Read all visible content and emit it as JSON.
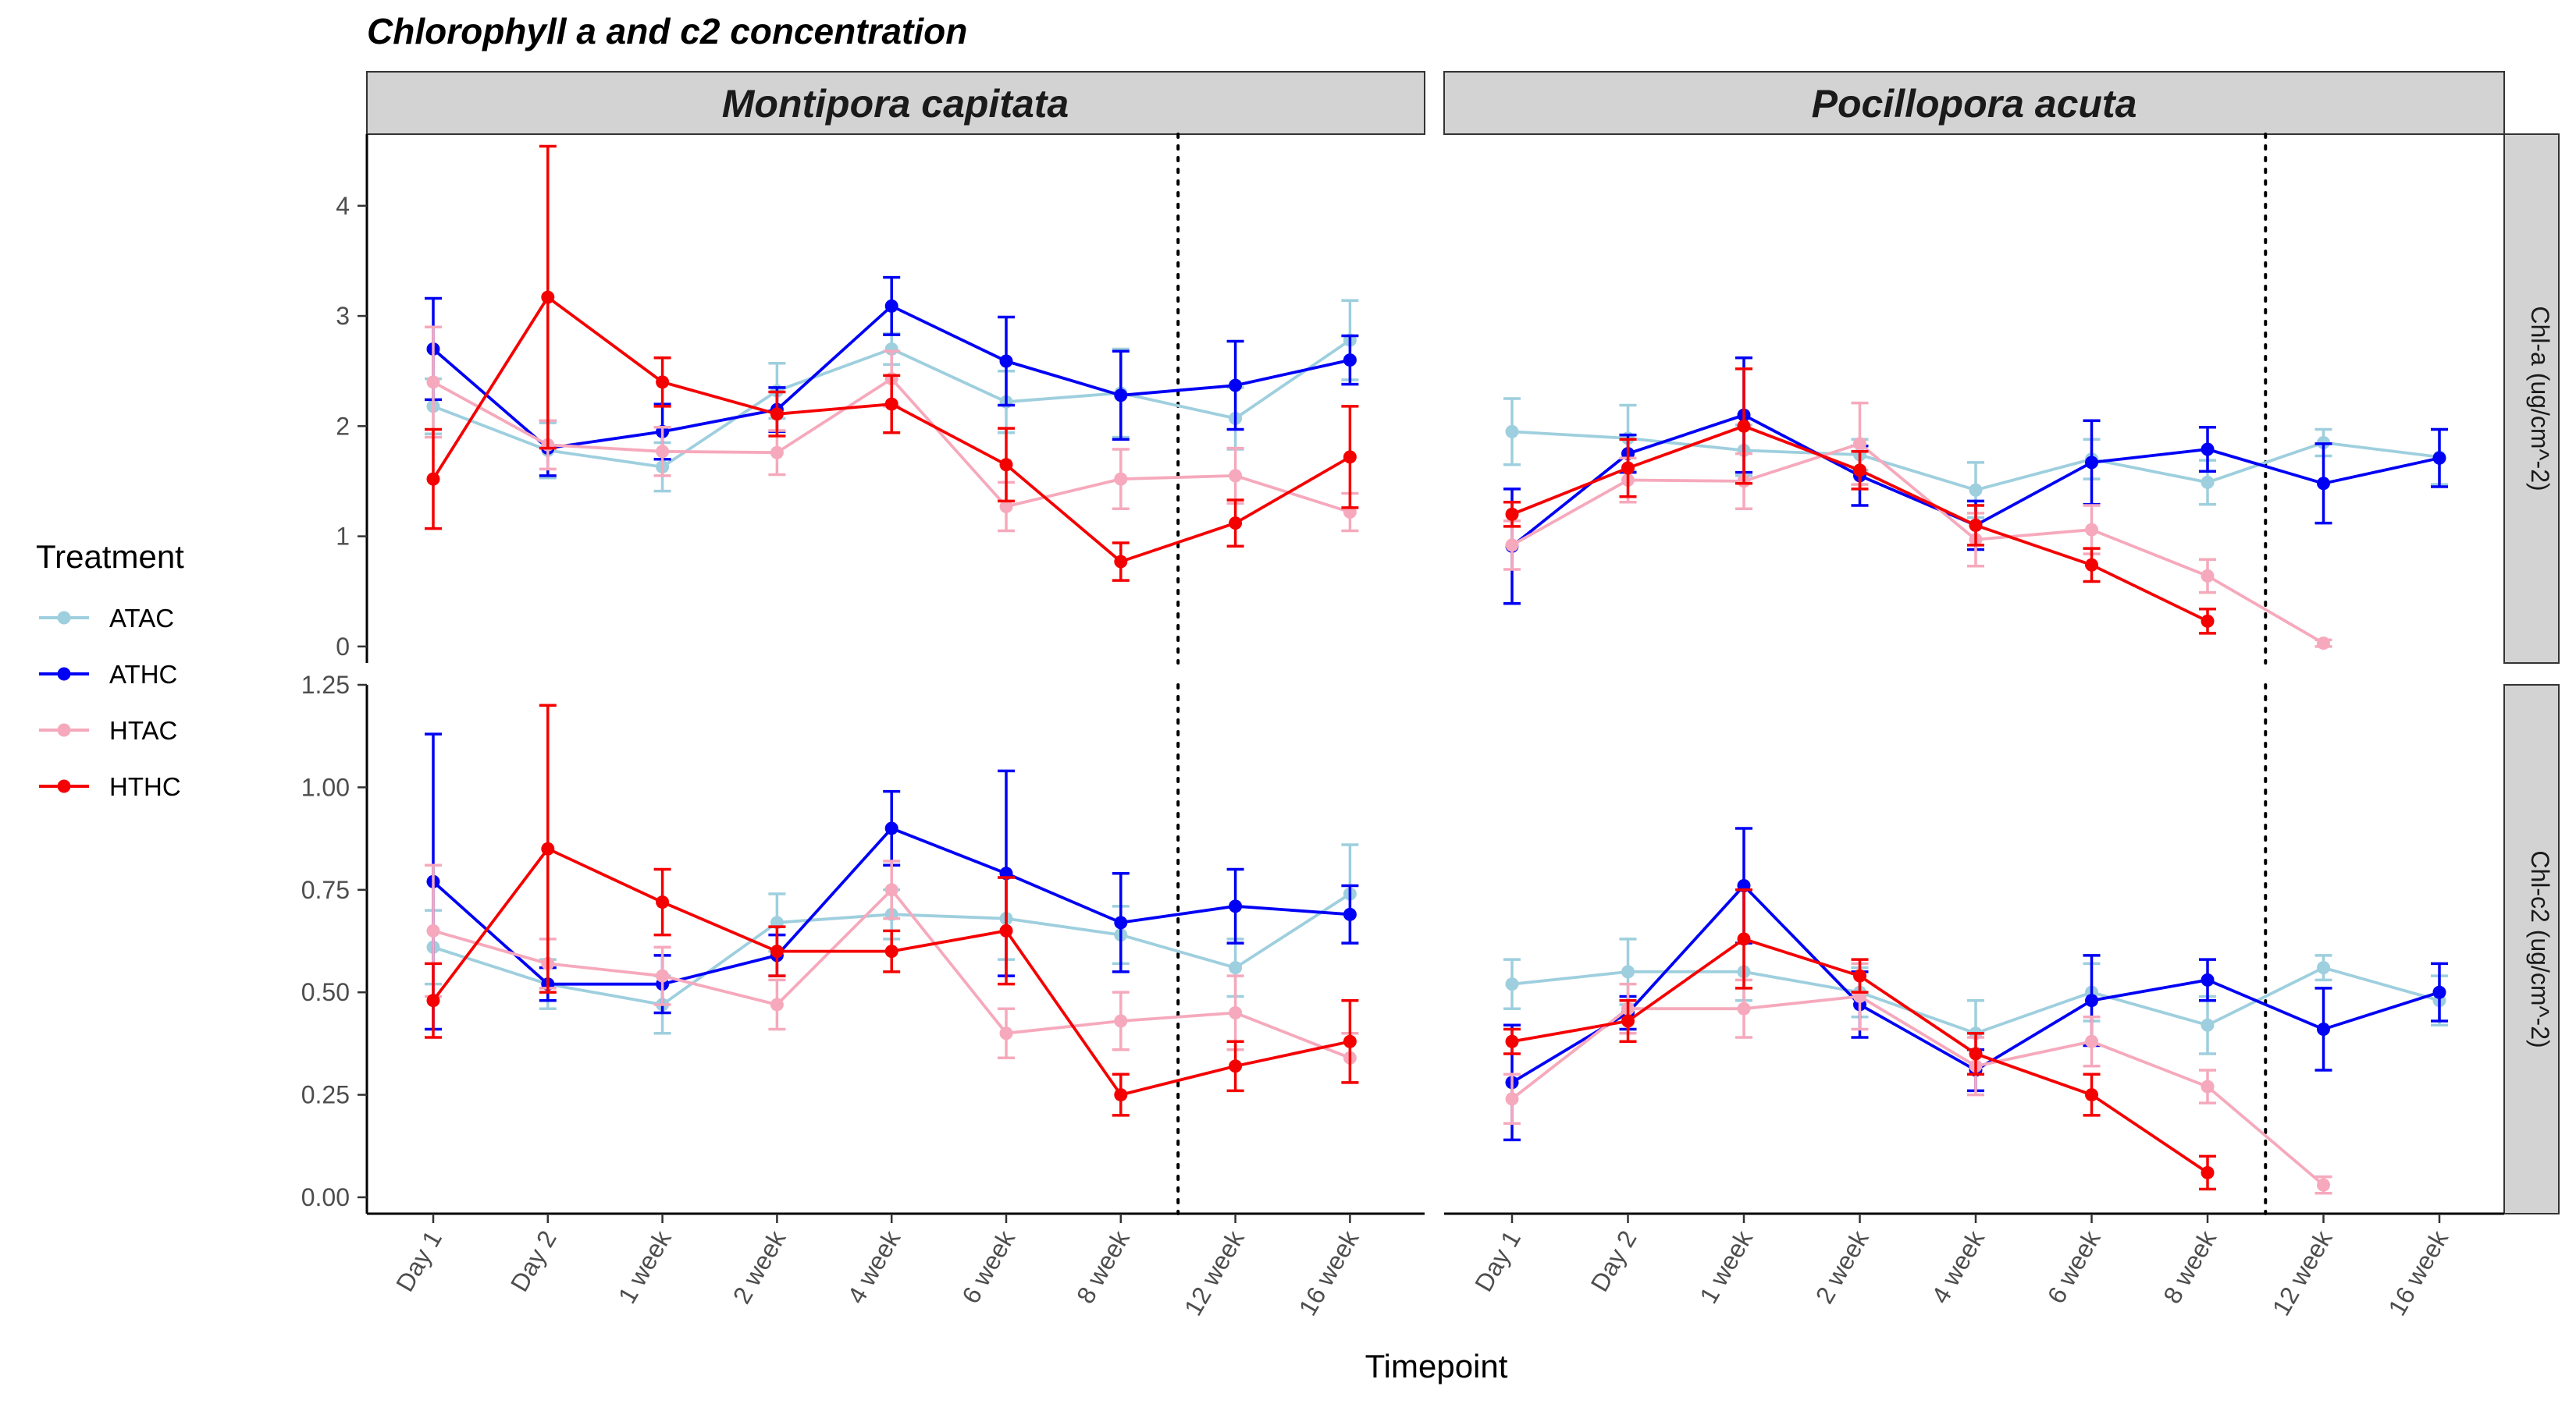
{
  "title": "Chlorophyll a and c2 concentration",
  "x_axis_title": "Timepoint",
  "legend": {
    "title": "Treatment",
    "items": [
      {
        "label": "ATAC",
        "color": "#9ecfde"
      },
      {
        "label": "ATHC",
        "color": "#0000f5"
      },
      {
        "label": "HTAC",
        "color": "#f6a9bc"
      },
      {
        "label": "HTHC",
        "color": "#f50000"
      }
    ]
  },
  "chart_data": {
    "type": "line",
    "facet_columns": [
      "Montipora capitata",
      "Pocillopora acuta"
    ],
    "facet_rows": [
      "Chl-a (ug/cm^-2)",
      "Chl-c2 (ug/cm^-2)"
    ],
    "categories": [
      "Day 1",
      "Day 2",
      "1 week",
      "2 week",
      "4 week",
      "6 week",
      "8 week",
      "12 week",
      "16 week"
    ],
    "reference_line_between": [
      "8 week",
      "12 week"
    ],
    "rows": [
      {
        "label": "Chl-a (ug/cm^-2)",
        "ylim": [
          -0.15,
          4.65
        ],
        "yticks": [
          0,
          1,
          2,
          3,
          4
        ],
        "ytick_labels": [
          "0",
          "1",
          "2",
          "3",
          "4"
        ],
        "panels": [
          {
            "facet": "Montipora capitata",
            "series": [
              {
                "name": "ATAC",
                "points": [
                  [
                    0,
                    2.18,
                    0.25
                  ],
                  [
                    1,
                    1.78,
                    0.25
                  ],
                  [
                    2,
                    1.63,
                    0.22
                  ],
                  [
                    3,
                    2.32,
                    0.25
                  ],
                  [
                    4,
                    2.7,
                    0.14
                  ],
                  [
                    5,
                    2.22,
                    0.28
                  ],
                  [
                    6,
                    2.3,
                    0.4
                  ],
                  [
                    7,
                    2.07,
                    0.28
                  ],
                  [
                    8,
                    2.78,
                    0.36
                  ]
                ]
              },
              {
                "name": "ATHC",
                "points": [
                  [
                    0,
                    2.7,
                    0.46
                  ],
                  [
                    1,
                    1.8,
                    0.25
                  ],
                  [
                    2,
                    1.95,
                    0.25
                  ],
                  [
                    3,
                    2.15,
                    0.2
                  ],
                  [
                    4,
                    3.09,
                    0.26
                  ],
                  [
                    5,
                    2.59,
                    0.4
                  ],
                  [
                    6,
                    2.28,
                    0.4
                  ],
                  [
                    7,
                    2.37,
                    0.4
                  ],
                  [
                    8,
                    2.6,
                    0.22
                  ]
                ]
              },
              {
                "name": "HTAC",
                "points": [
                  [
                    0,
                    2.4,
                    0.5
                  ],
                  [
                    1,
                    1.83,
                    0.22
                  ],
                  [
                    2,
                    1.77,
                    0.22
                  ],
                  [
                    3,
                    1.76,
                    0.2
                  ],
                  [
                    4,
                    2.43,
                    0.25
                  ],
                  [
                    5,
                    1.27,
                    0.22
                  ],
                  [
                    6,
                    1.52,
                    0.27
                  ],
                  [
                    7,
                    1.55,
                    0.25
                  ],
                  [
                    8,
                    1.22,
                    0.17
                  ]
                ]
              },
              {
                "name": "HTHC",
                "points": [
                  [
                    0,
                    1.52,
                    0.45
                  ],
                  [
                    1,
                    3.17,
                    1.37
                  ],
                  [
                    2,
                    2.4,
                    0.22
                  ],
                  [
                    3,
                    2.11,
                    0.2
                  ],
                  [
                    4,
                    2.2,
                    0.26
                  ],
                  [
                    5,
                    1.65,
                    0.33
                  ],
                  [
                    6,
                    0.77,
                    0.17
                  ],
                  [
                    7,
                    1.12,
                    0.21
                  ],
                  [
                    8,
                    1.72,
                    0.46
                  ]
                ]
              }
            ]
          },
          {
            "facet": "Pocillopora acuta",
            "series": [
              {
                "name": "ATAC",
                "points": [
                  [
                    0,
                    1.95,
                    0.3
                  ],
                  [
                    1,
                    1.89,
                    0.3
                  ],
                  [
                    2,
                    1.78,
                    0.23
                  ],
                  [
                    3,
                    1.74,
                    0.14
                  ],
                  [
                    4,
                    1.42,
                    0.25
                  ],
                  [
                    5,
                    1.7,
                    0.18
                  ],
                  [
                    6,
                    1.49,
                    0.2
                  ],
                  [
                    7,
                    1.85,
                    0.12
                  ],
                  [
                    8,
                    1.72,
                    0.25
                  ]
                ]
              },
              {
                "name": "ATHC",
                "points": [
                  [
                    0,
                    0.91,
                    0.52
                  ],
                  [
                    1,
                    1.75,
                    0.17
                  ],
                  [
                    2,
                    2.1,
                    0.52
                  ],
                  [
                    3,
                    1.55,
                    0.27
                  ],
                  [
                    4,
                    1.1,
                    0.22
                  ],
                  [
                    5,
                    1.67,
                    0.38
                  ],
                  [
                    6,
                    1.79,
                    0.2
                  ],
                  [
                    7,
                    1.48,
                    0.36
                  ],
                  [
                    8,
                    1.71,
                    0.26
                  ]
                ]
              },
              {
                "name": "HTAC",
                "points": [
                  [
                    0,
                    0.92,
                    0.22
                  ],
                  [
                    1,
                    1.51,
                    0.2
                  ],
                  [
                    2,
                    1.5,
                    0.25
                  ],
                  [
                    3,
                    1.84,
                    0.37
                  ],
                  [
                    4,
                    0.97,
                    0.24
                  ],
                  [
                    5,
                    1.06,
                    0.22
                  ],
                  [
                    6,
                    0.64,
                    0.15
                  ],
                  [
                    7,
                    0.03,
                    0.03
                  ]
                ]
              },
              {
                "name": "HTHC",
                "points": [
                  [
                    0,
                    1.2,
                    0.11
                  ],
                  [
                    1,
                    1.62,
                    0.26
                  ],
                  [
                    2,
                    2.0,
                    0.52
                  ],
                  [
                    3,
                    1.6,
                    0.17
                  ],
                  [
                    4,
                    1.1,
                    0.18
                  ],
                  [
                    5,
                    0.74,
                    0.15
                  ],
                  [
                    6,
                    0.23,
                    0.11
                  ]
                ]
              }
            ]
          }
        ]
      },
      {
        "label": "Chl-c2 (ug/cm^-2)",
        "ylim": [
          -0.04,
          1.25
        ],
        "yticks": [
          0,
          0.25,
          0.5,
          0.75,
          1.0,
          1.25
        ],
        "ytick_labels": [
          "0.00",
          "0.25",
          "0.50",
          "0.75",
          "1.00",
          "1.25"
        ],
        "panels": [
          {
            "facet": "Montipora capitata",
            "series": [
              {
                "name": "ATAC",
                "points": [
                  [
                    0,
                    0.61,
                    0.09
                  ],
                  [
                    1,
                    0.52,
                    0.06
                  ],
                  [
                    2,
                    0.47,
                    0.07
                  ],
                  [
                    3,
                    0.67,
                    0.07
                  ],
                  [
                    4,
                    0.69,
                    0.06
                  ],
                  [
                    5,
                    0.68,
                    0.1
                  ],
                  [
                    6,
                    0.64,
                    0.07
                  ],
                  [
                    7,
                    0.56,
                    0.07
                  ],
                  [
                    8,
                    0.74,
                    0.12
                  ]
                ]
              },
              {
                "name": "ATHC",
                "points": [
                  [
                    0,
                    0.77,
                    0.36
                  ],
                  [
                    1,
                    0.52,
                    0.04
                  ],
                  [
                    2,
                    0.52,
                    0.07
                  ],
                  [
                    3,
                    0.59,
                    0.05
                  ],
                  [
                    4,
                    0.9,
                    0.09
                  ],
                  [
                    5,
                    0.79,
                    0.25
                  ],
                  [
                    6,
                    0.67,
                    0.12
                  ],
                  [
                    7,
                    0.71,
                    0.09
                  ],
                  [
                    8,
                    0.69,
                    0.07
                  ]
                ]
              },
              {
                "name": "HTAC",
                "points": [
                  [
                    0,
                    0.65,
                    0.16
                  ],
                  [
                    1,
                    0.57,
                    0.06
                  ],
                  [
                    2,
                    0.54,
                    0.07
                  ],
                  [
                    3,
                    0.47,
                    0.06
                  ],
                  [
                    4,
                    0.75,
                    0.07
                  ],
                  [
                    5,
                    0.4,
                    0.06
                  ],
                  [
                    6,
                    0.43,
                    0.07
                  ],
                  [
                    7,
                    0.45,
                    0.09
                  ],
                  [
                    8,
                    0.34,
                    0.06
                  ]
                ]
              },
              {
                "name": "HTHC",
                "points": [
                  [
                    0,
                    0.48,
                    0.09
                  ],
                  [
                    1,
                    0.85,
                    0.35
                  ],
                  [
                    2,
                    0.72,
                    0.08
                  ],
                  [
                    3,
                    0.6,
                    0.06
                  ],
                  [
                    4,
                    0.6,
                    0.05
                  ],
                  [
                    5,
                    0.65,
                    0.13
                  ],
                  [
                    6,
                    0.25,
                    0.05
                  ],
                  [
                    7,
                    0.32,
                    0.06
                  ],
                  [
                    8,
                    0.38,
                    0.1
                  ]
                ]
              }
            ]
          },
          {
            "facet": "Pocillopora acuta",
            "series": [
              {
                "name": "ATAC",
                "points": [
                  [
                    0,
                    0.52,
                    0.06
                  ],
                  [
                    1,
                    0.55,
                    0.08
                  ],
                  [
                    2,
                    0.55,
                    0.07
                  ],
                  [
                    3,
                    0.5,
                    0.06
                  ],
                  [
                    4,
                    0.4,
                    0.08
                  ],
                  [
                    5,
                    0.5,
                    0.07
                  ],
                  [
                    6,
                    0.42,
                    0.07
                  ],
                  [
                    7,
                    0.56,
                    0.03
                  ],
                  [
                    8,
                    0.48,
                    0.06
                  ]
                ]
              },
              {
                "name": "ATHC",
                "points": [
                  [
                    0,
                    0.28,
                    0.14
                  ],
                  [
                    1,
                    0.45,
                    0.04
                  ],
                  [
                    2,
                    0.76,
                    0.14
                  ],
                  [
                    3,
                    0.47,
                    0.08
                  ],
                  [
                    4,
                    0.31,
                    0.05
                  ],
                  [
                    5,
                    0.48,
                    0.11
                  ],
                  [
                    6,
                    0.53,
                    0.05
                  ],
                  [
                    7,
                    0.41,
                    0.1
                  ],
                  [
                    8,
                    0.5,
                    0.07
                  ]
                ]
              },
              {
                "name": "HTAC",
                "points": [
                  [
                    0,
                    0.24,
                    0.06
                  ],
                  [
                    1,
                    0.46,
                    0.06
                  ],
                  [
                    2,
                    0.46,
                    0.07
                  ],
                  [
                    3,
                    0.49,
                    0.08
                  ],
                  [
                    4,
                    0.32,
                    0.07
                  ],
                  [
                    5,
                    0.38,
                    0.06
                  ],
                  [
                    6,
                    0.27,
                    0.04
                  ],
                  [
                    7,
                    0.03,
                    0.02
                  ]
                ]
              },
              {
                "name": "HTHC",
                "points": [
                  [
                    0,
                    0.38,
                    0.03
                  ],
                  [
                    1,
                    0.43,
                    0.05
                  ],
                  [
                    2,
                    0.63,
                    0.12
                  ],
                  [
                    3,
                    0.54,
                    0.04
                  ],
                  [
                    4,
                    0.35,
                    0.05
                  ],
                  [
                    5,
                    0.25,
                    0.05
                  ],
                  [
                    6,
                    0.06,
                    0.04
                  ]
                ]
              }
            ]
          }
        ]
      }
    ]
  }
}
